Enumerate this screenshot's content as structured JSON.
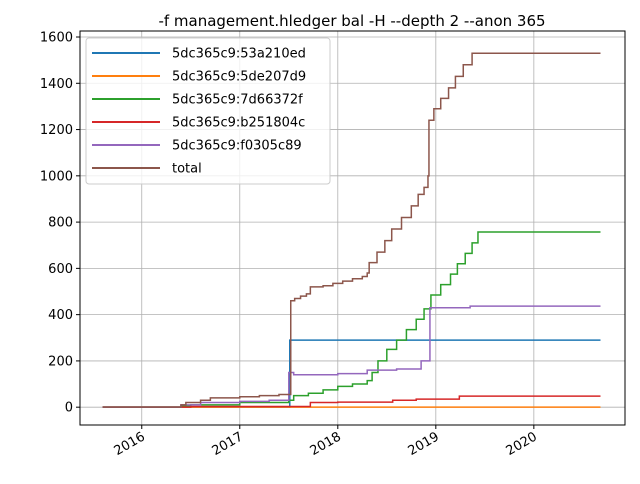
{
  "chart_data": {
    "type": "step",
    "title": "-f management.hledger bal -H --depth 2 --anon 365",
    "xlim": [
      2015.37,
      2020.93
    ],
    "xticks": [
      2016,
      2017,
      2018,
      2019,
      2020
    ],
    "ylim": [
      -77,
      1626
    ],
    "yticks": [
      0,
      200,
      400,
      600,
      800,
      1000,
      1200,
      1400,
      1600
    ],
    "grid": true,
    "legend": "upper left",
    "series": [
      {
        "name": "5dc365c9:53a210ed",
        "color": "#1f77b4",
        "x": [
          2015.6,
          2017.51,
          2020.68
        ],
        "values": [
          0,
          290,
          290
        ]
      },
      {
        "name": "5dc365c9:5de207d9",
        "color": "#ff7f0e",
        "x": [
          2015.6,
          2020.68
        ],
        "values": [
          0,
          0
        ]
      },
      {
        "name": "5dc365c9:7d66372f",
        "color": "#2ca02c",
        "x": [
          2015.6,
          2016.4,
          2016.5,
          2017.0,
          2017.5,
          2017.55,
          2017.7,
          2017.85,
          2018.0,
          2018.15,
          2018.3,
          2018.35,
          2018.41,
          2018.5,
          2018.6,
          2018.7,
          2018.8,
          2018.88,
          2018.95,
          2019.05,
          2019.15,
          2019.22,
          2019.3,
          2019.37,
          2019.43,
          2020.68
        ],
        "values": [
          0,
          5,
          10,
          20,
          30,
          50,
          60,
          75,
          90,
          100,
          115,
          150,
          200,
          250,
          290,
          335,
          380,
          425,
          485,
          530,
          575,
          620,
          665,
          710,
          757,
          757
        ]
      },
      {
        "name": "5dc365c9:b251804c",
        "color": "#d62728",
        "x": [
          2015.6,
          2016.5,
          2017.72,
          2018.0,
          2018.56,
          2018.8,
          2019.24,
          2020.68
        ],
        "values": [
          0,
          3,
          20,
          22,
          30,
          35,
          48,
          48
        ]
      },
      {
        "name": "5dc365c9:f0305c89",
        "color": "#9467bd",
        "x": [
          2015.6,
          2016.4,
          2016.6,
          2017.0,
          2017.3,
          2017.5,
          2017.55,
          2018.0,
          2018.3,
          2018.6,
          2018.85,
          2018.94,
          2019.35,
          2020.68
        ],
        "values": [
          0,
          10,
          20,
          25,
          30,
          150,
          140,
          145,
          160,
          165,
          200,
          430,
          437,
          437
        ]
      },
      {
        "name": "total",
        "color": "#8c564b",
        "x": [
          2015.6,
          2016.4,
          2016.45,
          2016.6,
          2016.7,
          2017.0,
          2017.2,
          2017.4,
          2017.52,
          2017.56,
          2017.62,
          2017.68,
          2017.72,
          2017.85,
          2017.95,
          2018.05,
          2018.15,
          2018.25,
          2018.3,
          2018.32,
          2018.4,
          2018.48,
          2018.55,
          2018.65,
          2018.75,
          2018.82,
          2018.88,
          2018.92,
          2018.93,
          2018.98,
          2019.05,
          2019.13,
          2019.2,
          2019.28,
          2019.37,
          2020.68
        ],
        "values": [
          0,
          10,
          20,
          30,
          40,
          45,
          50,
          55,
          460,
          470,
          480,
          490,
          520,
          525,
          535,
          545,
          555,
          565,
          580,
          625,
          670,
          720,
          770,
          820,
          870,
          920,
          950,
          1000,
          1240,
          1290,
          1335,
          1380,
          1430,
          1480,
          1530,
          1530
        ]
      }
    ]
  }
}
